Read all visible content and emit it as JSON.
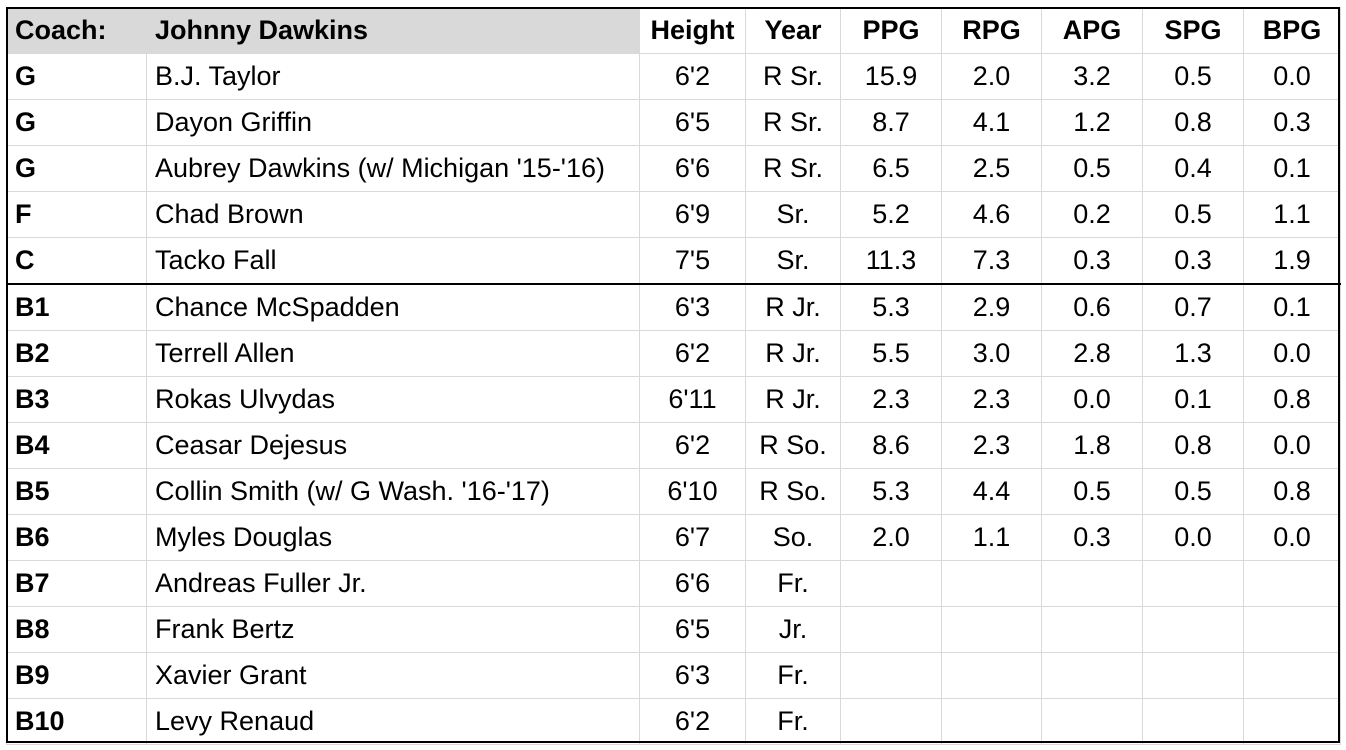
{
  "header": {
    "coach_label": "Coach:",
    "coach_name": "Johnny Dawkins",
    "columns": [
      "Height",
      "Year",
      "PPG",
      "RPG",
      "APG",
      "SPG",
      "BPG"
    ]
  },
  "rows": [
    {
      "pos": "G",
      "name": "B.J. Taylor",
      "height": "6'2",
      "year": "R Sr.",
      "ppg": "15.9",
      "rpg": "2.0",
      "apg": "3.2",
      "spg": "0.5",
      "bpg": "0.0"
    },
    {
      "pos": "G",
      "name": "Dayon Griffin",
      "height": "6'5",
      "year": "R Sr.",
      "ppg": "8.7",
      "rpg": "4.1",
      "apg": "1.2",
      "spg": "0.8",
      "bpg": "0.3"
    },
    {
      "pos": "G",
      "name": "Aubrey Dawkins (w/ Michigan '15-'16)",
      "height": "6'6",
      "year": "R Sr.",
      "ppg": "6.5",
      "rpg": "2.5",
      "apg": "0.5",
      "spg": "0.4",
      "bpg": "0.1"
    },
    {
      "pos": "F",
      "name": "Chad Brown",
      "height": "6'9",
      "year": "Sr.",
      "ppg": "5.2",
      "rpg": "4.6",
      "apg": "0.2",
      "spg": "0.5",
      "bpg": "1.1"
    },
    {
      "pos": "C",
      "name": "Tacko Fall",
      "height": "7'5",
      "year": "Sr.",
      "ppg": "11.3",
      "rpg": "7.3",
      "apg": "0.3",
      "spg": "0.3",
      "bpg": "1.9"
    },
    {
      "pos": "B1",
      "name": "Chance McSpadden",
      "height": "6'3",
      "year": "R Jr.",
      "ppg": "5.3",
      "rpg": "2.9",
      "apg": "0.6",
      "spg": "0.7",
      "bpg": "0.1"
    },
    {
      "pos": "B2",
      "name": "Terrell Allen",
      "height": "6'2",
      "year": "R Jr.",
      "ppg": "5.5",
      "rpg": "3.0",
      "apg": "2.8",
      "spg": "1.3",
      "bpg": "0.0"
    },
    {
      "pos": "B3",
      "name": "Rokas Ulvydas",
      "height": "6'11",
      "year": "R Jr.",
      "ppg": "2.3",
      "rpg": "2.3",
      "apg": "0.0",
      "spg": "0.1",
      "bpg": "0.8"
    },
    {
      "pos": "B4",
      "name": "Ceasar Dejesus",
      "height": "6'2",
      "year": "R So.",
      "ppg": "8.6",
      "rpg": "2.3",
      "apg": "1.8",
      "spg": "0.8",
      "bpg": "0.0"
    },
    {
      "pos": "B5",
      "name": "Collin Smith (w/ G Wash. '16-'17)",
      "height": "6'10",
      "year": "R So.",
      "ppg": "5.3",
      "rpg": "4.4",
      "apg": "0.5",
      "spg": "0.5",
      "bpg": "0.8"
    },
    {
      "pos": "B6",
      "name": "Myles Douglas",
      "height": "6'7",
      "year": "So.",
      "ppg": "2.0",
      "rpg": "1.1",
      "apg": "0.3",
      "spg": "0.0",
      "bpg": "0.0"
    },
    {
      "pos": "B7",
      "name": "Andreas Fuller Jr.",
      "height": "6'6",
      "year": "Fr.",
      "ppg": "",
      "rpg": "",
      "apg": "",
      "spg": "",
      "bpg": ""
    },
    {
      "pos": "B8",
      "name": "Frank Bertz",
      "height": "6'5",
      "year": "Jr.",
      "ppg": "",
      "rpg": "",
      "apg": "",
      "spg": "",
      "bpg": ""
    },
    {
      "pos": "B9",
      "name": "Xavier Grant",
      "height": "6'3",
      "year": "Fr.",
      "ppg": "",
      "rpg": "",
      "apg": "",
      "spg": "",
      "bpg": ""
    },
    {
      "pos": "B10",
      "name": "Levy Renaud",
      "height": "6'2",
      "year": "Fr.",
      "ppg": "",
      "rpg": "",
      "apg": "",
      "spg": "",
      "bpg": ""
    }
  ],
  "colors": {
    "header_fill": "#d9d9d9",
    "grid": "#d9d9d9",
    "divider": "#000000"
  }
}
